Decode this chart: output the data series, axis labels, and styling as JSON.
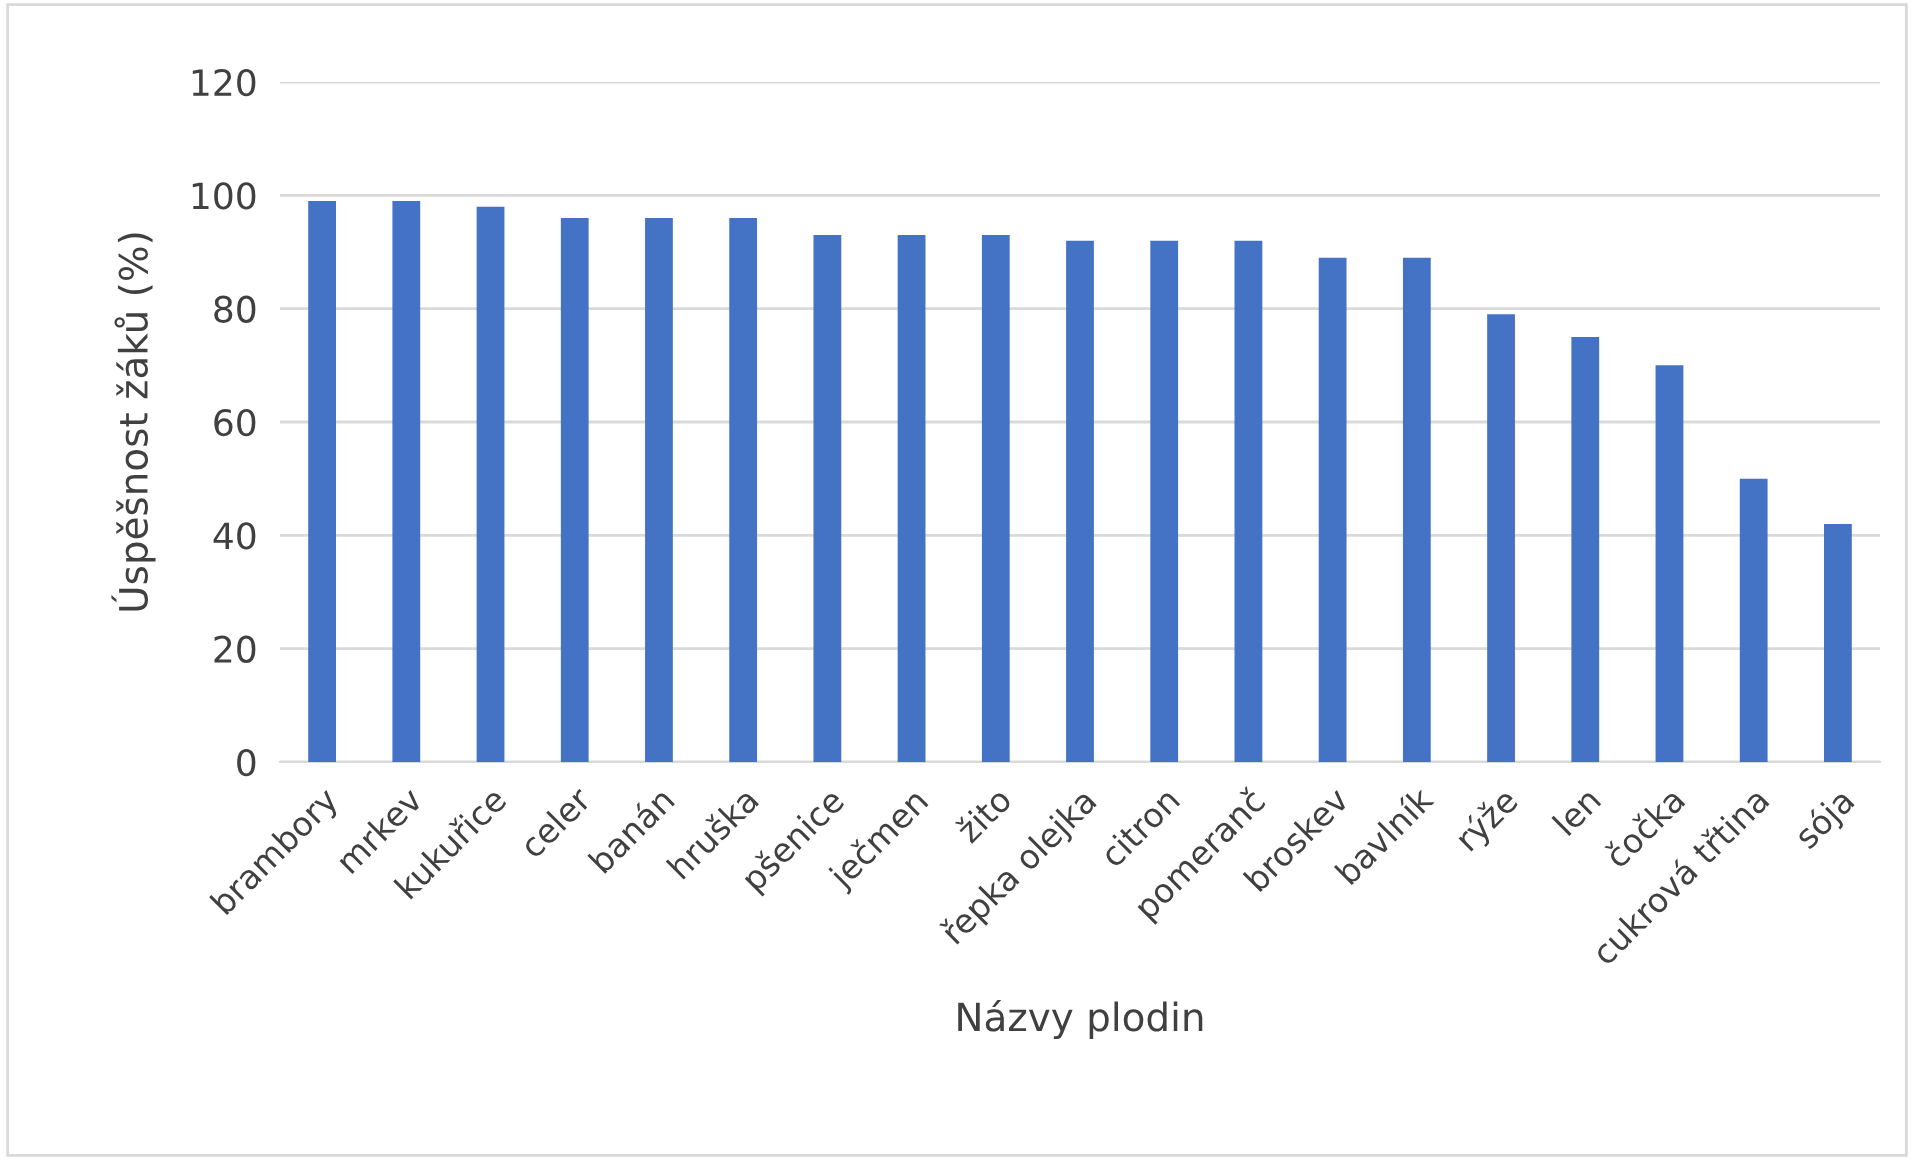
{
  "chart_data": {
    "type": "bar",
    "xlabel": "Názvy plodin",
    "ylabel": "Úspěšnost žáků (%)",
    "categories": [
      "brambory",
      "mrkev",
      "kukuřice",
      "celer",
      "banán",
      "hruška",
      "pšenice",
      "ječmen",
      "žito",
      "řepka olejka",
      "citron",
      "pomeranč",
      "broskev",
      "bavlník",
      "rýže",
      "len",
      "čočka",
      "cukrová třtina",
      "sója"
    ],
    "values": [
      99,
      99,
      98,
      96,
      96,
      96,
      93,
      93,
      93,
      92,
      92,
      92,
      89,
      89,
      79,
      75,
      70,
      50,
      42
    ],
    "color": "#4472c4",
    "ylim": [
      0,
      120
    ],
    "yticks": [
      0,
      20,
      40,
      60,
      80,
      100,
      120
    ],
    "grid": "y",
    "legend": false
  }
}
